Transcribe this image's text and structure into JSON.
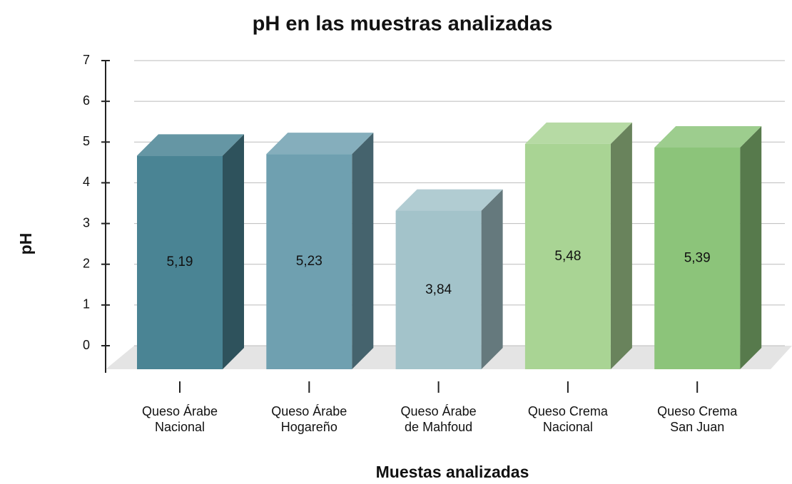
{
  "chart_data": {
    "type": "bar3d",
    "title": "pH en las muestras analizadas",
    "x_label": "Muestas analizadas",
    "y_label": "pH",
    "categories": [
      "Queso Árabe\nNacional",
      "Queso Árabe\nHogareño",
      "Queso Árabe\nde Mahfoud",
      "Queso Crema\nNacional",
      "Queso Crema\nSan Juan"
    ],
    "values": [
      5.19,
      5.23,
      3.84,
      5.48,
      5.39
    ],
    "value_labels": [
      "5,19",
      "5,23",
      "3,84",
      "5,48",
      "5,39"
    ],
    "colors": [
      "#4a8494",
      "#6fa0b0",
      "#a3c3ca",
      "#a9d494",
      "#8cc47a"
    ],
    "ylim": [
      0,
      7
    ],
    "yticks": [
      0,
      1,
      2,
      3,
      4,
      5,
      6,
      7
    ],
    "grid": true
  }
}
